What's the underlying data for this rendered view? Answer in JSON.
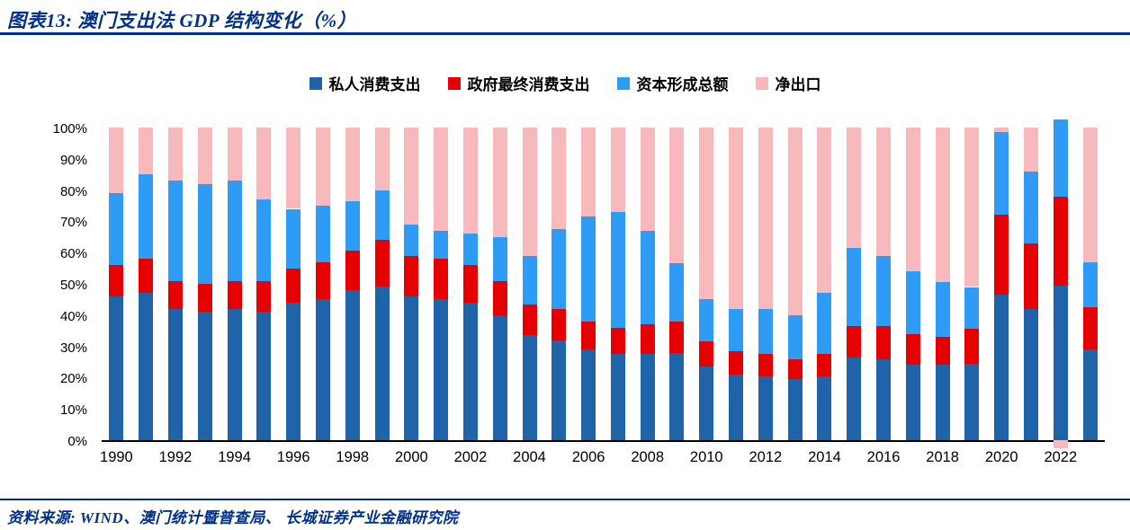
{
  "title": "图表13:  澳门支出法 GDP 结构变化（%）",
  "source": "资料来源:  WIND、澳门统计暨普查局、 长城证券产业金融研究院",
  "colors": {
    "heading_blue": "#003087",
    "axis_line": "#000000",
    "private_consumption": "#1F63A8",
    "government_consumption": "#E60000",
    "capital_formation": "#2E9BF5",
    "net_exports": "#F7B9BB"
  },
  "chart_data": {
    "type": "bar",
    "subtype": "stacked-percent-column",
    "title": "澳门支出法 GDP 结构变化（%）",
    "xlabel": "",
    "ylabel": "",
    "ylim": [
      0,
      100
    ],
    "grid": false,
    "legend_position": "top",
    "categories": [
      1990,
      1991,
      1992,
      1993,
      1994,
      1995,
      1996,
      1997,
      1998,
      1999,
      2000,
      2001,
      2002,
      2003,
      2004,
      2005,
      2006,
      2007,
      2008,
      2009,
      2010,
      2011,
      2012,
      2013,
      2014,
      2015,
      2016,
      2017,
      2018,
      2019,
      2020,
      2021,
      2022,
      2023
    ],
    "series": [
      {
        "name": "私人消费支出",
        "color": "#1F63A8",
        "values": [
          46,
          47,
          42,
          41,
          42,
          41,
          44,
          45,
          48,
          49,
          46,
          45,
          44,
          40,
          33.5,
          32,
          29,
          27.5,
          27.5,
          28,
          23.5,
          21,
          20.5,
          19.5,
          20.5,
          26.5,
          26,
          24,
          24,
          24.5,
          46.5,
          42,
          49.5,
          29
        ]
      },
      {
        "name": "政府最终消费支出",
        "color": "#E60000",
        "values": [
          10,
          11,
          9,
          9,
          9,
          10,
          11,
          12,
          12.5,
          15,
          13,
          13,
          12,
          11,
          10,
          10,
          9,
          8.5,
          9.5,
          10,
          8,
          7.5,
          7,
          6.5,
          7,
          10,
          10.5,
          10,
          9,
          11,
          25.5,
          21,
          28.5,
          13.5
        ]
      },
      {
        "name": "资本形成总额",
        "color": "#2E9BF5",
        "values": [
          23,
          27,
          32,
          32,
          32,
          26,
          19,
          18,
          16,
          16,
          10,
          9,
          10,
          14,
          15.5,
          25.5,
          33.5,
          37,
          30,
          18.5,
          13.5,
          13.5,
          14.5,
          14,
          19.5,
          25,
          22.5,
          20,
          17.5,
          13.5,
          26.5,
          23,
          24.5,
          14.5
        ]
      },
      {
        "name": "净出口",
        "color": "#F7B9BB",
        "values": [
          21,
          15,
          17,
          18,
          17,
          23,
          26,
          25,
          23.5,
          20,
          31,
          33,
          34,
          35,
          41,
          32.5,
          28.5,
          27,
          33,
          43.5,
          55,
          58,
          58,
          60,
          53,
          38.5,
          41,
          46,
          49.5,
          51,
          1.5,
          14,
          -2.5,
          43
        ]
      }
    ],
    "yticks": [
      "0%",
      "10%",
      "20%",
      "30%",
      "40%",
      "50%",
      "60%",
      "70%",
      "80%",
      "90%",
      "100%"
    ],
    "xtick_labels": [
      "1990",
      "1992",
      "1994",
      "1996",
      "1998",
      "2000",
      "2002",
      "2004",
      "2006",
      "2008",
      "2010",
      "2012",
      "2014",
      "2016",
      "2018",
      "2020",
      "2022"
    ]
  }
}
